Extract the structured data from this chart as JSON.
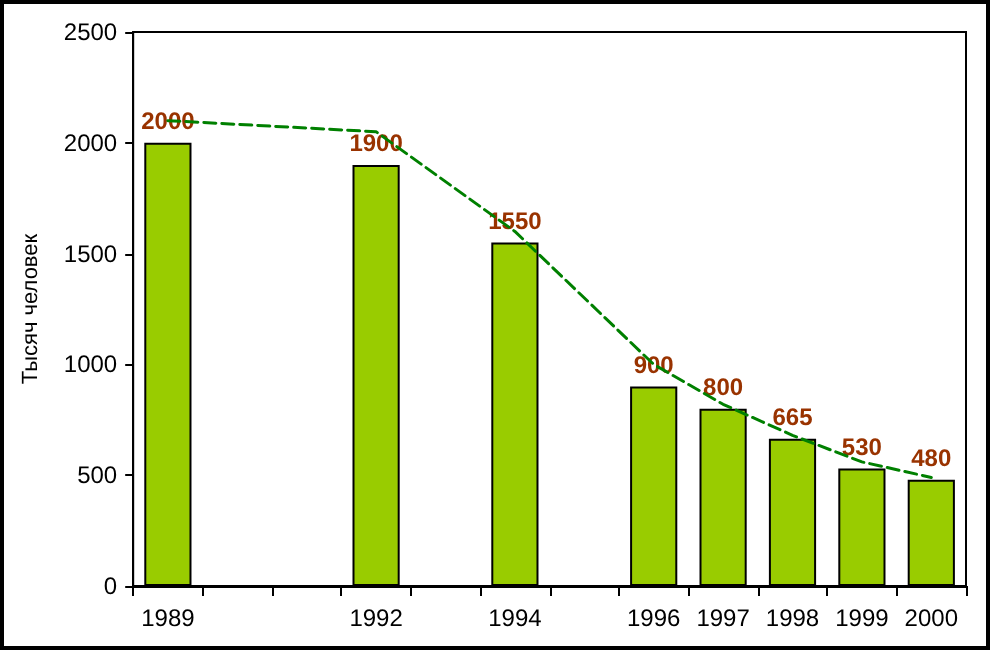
{
  "chart_data": {
    "type": "bar",
    "ylabel": "Тысяч человек",
    "categories": [
      "1989",
      null,
      null,
      "1992",
      null,
      "1994",
      null,
      "1996",
      "1997",
      "1998",
      "1999",
      "2000"
    ],
    "series": [
      {
        "color": "#99cc00",
        "values": [
          2000,
          null,
          null,
          1900,
          null,
          1550,
          null,
          900,
          800,
          665,
          530,
          480
        ],
        "value_labels": [
          "2000",
          null,
          null,
          "1900",
          null,
          "1550",
          null,
          "900",
          "800",
          "665",
          "530",
          "480"
        ]
      },
      {
        "type": "line",
        "color": "#008000",
        "line_style": "dashed",
        "marker": "none",
        "values": [
          2100,
          null,
          null,
          2050,
          null,
          1600,
          null,
          1000,
          820,
          680,
          560,
          490
        ]
      }
    ],
    "ylim": [
      0,
      2500
    ],
    "yticks": [
      0,
      500,
      1000,
      1500,
      2000,
      2500
    ],
    "grid": false
  }
}
